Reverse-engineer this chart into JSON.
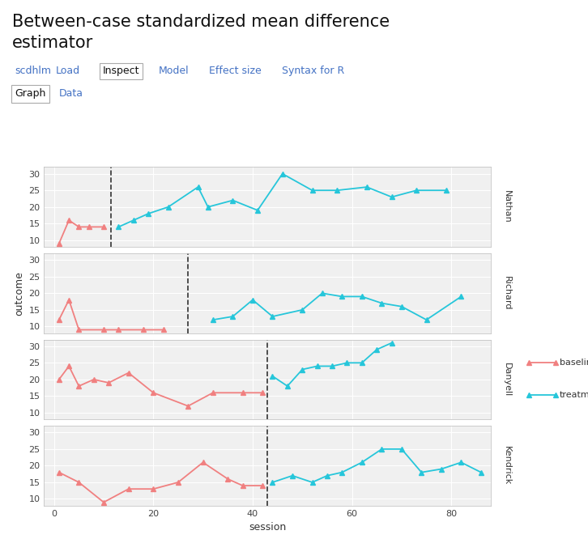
{
  "title_line1": "Between-case standardized mean difference",
  "title_line2": "estimator",
  "xlabel": "session",
  "ylabel": "outcome",
  "tab_labels": [
    "scdhlm",
    "Load",
    "Inspect",
    "Model",
    "Effect size",
    "Syntax for R"
  ],
  "active_tab": "Inspect",
  "subtab_labels": [
    "Graph",
    "Data"
  ],
  "active_subtab": "Graph",
  "cases": [
    "Nathan",
    "Richard",
    "Danyell",
    "Kendrick"
  ],
  "baseline_color": "#F08080",
  "treatment_color": "#26C6DA",
  "panel_bg": "#f0f0f0",
  "strip_bg": "#c8c8c8",
  "ylim": [
    8,
    32
  ],
  "yticks": [
    10,
    15,
    20,
    25,
    30
  ],
  "xlim": [
    -2,
    88
  ],
  "xticks": [
    0,
    20,
    40,
    60,
    80
  ],
  "nathan": {
    "baseline_x": [
      1,
      3,
      5,
      7,
      10
    ],
    "baseline_y": [
      9,
      16,
      14,
      14,
      14
    ],
    "treatment_x": [
      13,
      16,
      19,
      23,
      29,
      31,
      36,
      41,
      46,
      52,
      57,
      63,
      68,
      73,
      79
    ],
    "treatment_y": [
      14,
      16,
      18,
      20,
      26,
      20,
      22,
      19,
      30,
      25,
      25,
      26,
      23,
      25,
      25
    ],
    "dashed_x": 11.5
  },
  "richard": {
    "baseline_x": [
      1,
      3,
      5,
      10,
      13,
      18,
      22
    ],
    "baseline_y": [
      12,
      18,
      9,
      9,
      9,
      9,
      9
    ],
    "treatment_x": [
      32,
      36,
      40,
      44,
      50,
      54,
      58,
      62,
      66,
      70,
      75,
      82
    ],
    "treatment_y": [
      12,
      13,
      18,
      13,
      15,
      20,
      19,
      19,
      17,
      16,
      12,
      19
    ],
    "dashed_x": 27
  },
  "danyell": {
    "baseline_x": [
      1,
      3,
      5,
      8,
      11,
      15,
      20,
      27,
      32,
      38,
      42
    ],
    "baseline_y": [
      20,
      24,
      18,
      20,
      19,
      22,
      16,
      12,
      16,
      16,
      16
    ],
    "treatment_x": [
      44,
      47,
      50,
      53,
      56,
      59,
      62,
      65,
      68
    ],
    "treatment_y": [
      21,
      18,
      23,
      24,
      24,
      25,
      25,
      29,
      31
    ],
    "dashed_x": 43
  },
  "kendrick": {
    "baseline_x": [
      1,
      5,
      10,
      15,
      20,
      25,
      30,
      35,
      38,
      42
    ],
    "baseline_y": [
      18,
      15,
      9,
      13,
      13,
      15,
      21,
      16,
      14,
      14
    ],
    "treatment_x": [
      44,
      48,
      52,
      55,
      58,
      62,
      66,
      70,
      74,
      78,
      82,
      86
    ],
    "treatment_y": [
      15,
      17,
      15,
      17,
      18,
      21,
      25,
      25,
      18,
      19,
      21,
      18
    ],
    "dashed_x": 43
  }
}
